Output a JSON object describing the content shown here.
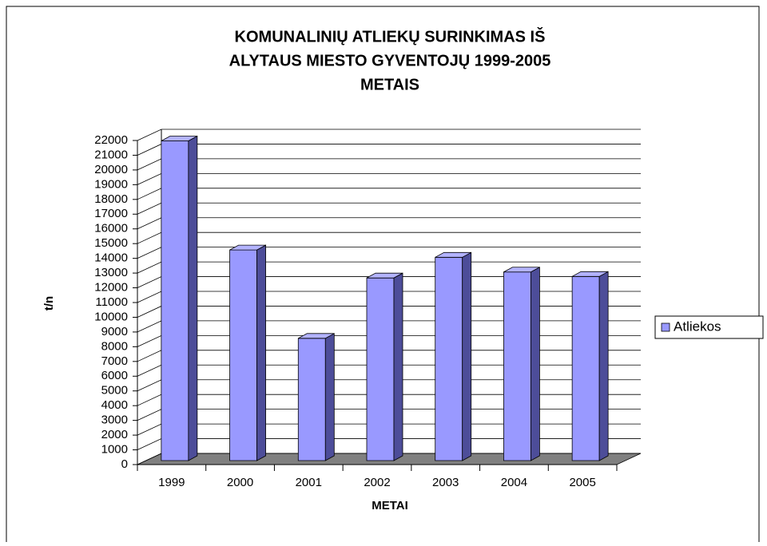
{
  "chart_data": {
    "type": "bar3d",
    "title": [
      "KOMUNALINIŲ ATLIEKŲ SURINKIMAS IŠ",
      "ALYTAUS MIESTO GYVENTOJŲ 1999-2005",
      "METAIS"
    ],
    "x_label": "METAI",
    "y_label": "t/n",
    "categories": [
      "1999",
      "2000",
      "2001",
      "2002",
      "2003",
      "2004",
      "2005"
    ],
    "series": [
      {
        "name": "Atliekos",
        "color": "#9999ff",
        "values": [
          21700,
          14300,
          8300,
          12400,
          13800,
          12800,
          12500
        ]
      }
    ],
    "ylim": [
      0,
      22000
    ],
    "yticks": [
      0,
      1000,
      2000,
      3000,
      4000,
      5000,
      6000,
      7000,
      8000,
      9000,
      10000,
      11000,
      12000,
      13000,
      14000,
      15000,
      16000,
      17000,
      18000,
      19000,
      20000,
      21000,
      22000
    ],
    "grid": true,
    "legend": "right"
  }
}
